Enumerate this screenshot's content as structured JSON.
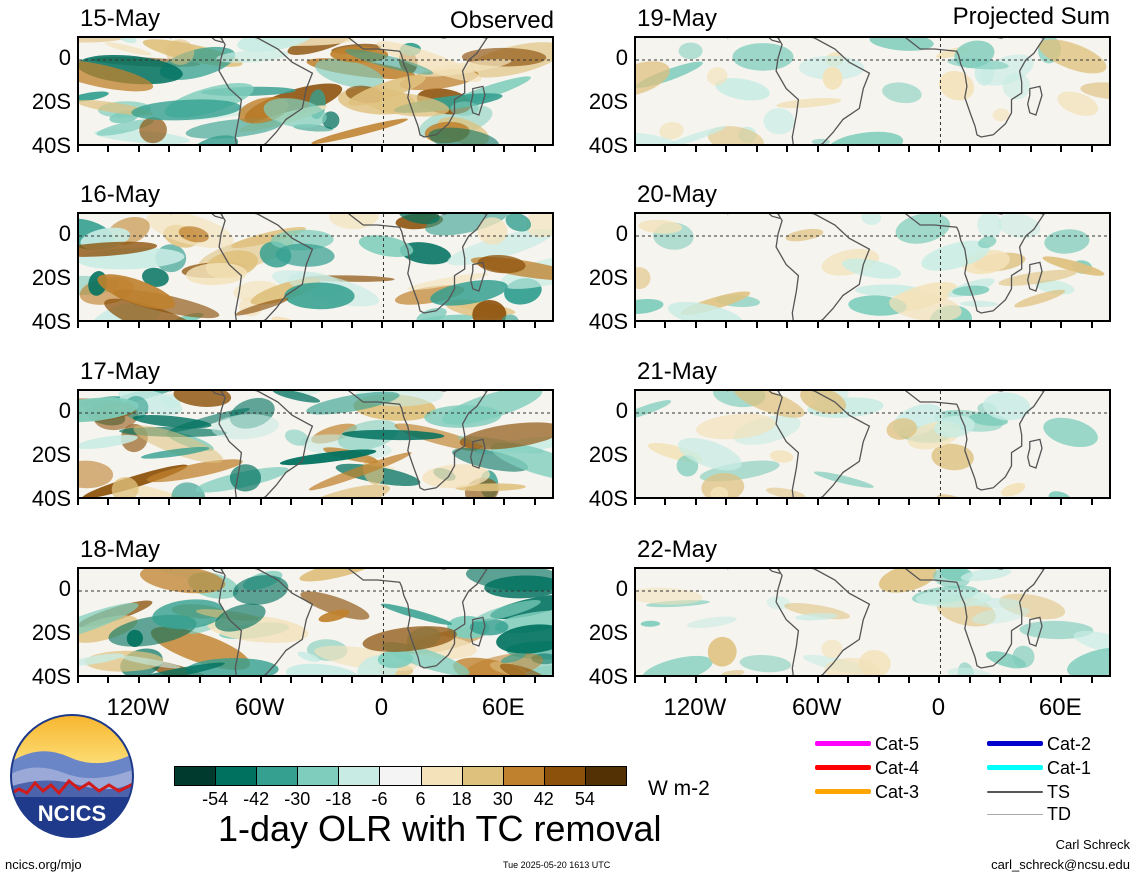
{
  "columns": {
    "observed": "Observed",
    "projected": "Projected Sum"
  },
  "panels_left": [
    {
      "date": "15-May"
    },
    {
      "date": "16-May"
    },
    {
      "date": "17-May"
    },
    {
      "date": "18-May"
    }
  ],
  "panels_right": [
    {
      "date": "19-May"
    },
    {
      "date": "20-May"
    },
    {
      "date": "21-May"
    },
    {
      "date": "22-May"
    }
  ],
  "map_extent": {
    "lon_min": -150,
    "lon_max": 85,
    "lat_min": -40,
    "lat_max": 10
  },
  "y_ticks": [
    "0",
    "20S",
    "40S"
  ],
  "x_ticks": [
    "120W",
    "60W",
    "0",
    "60E"
  ],
  "colorbar": {
    "labels": [
      "-54",
      "-42",
      "-30",
      "-18",
      "-6",
      "6",
      "18",
      "30",
      "42",
      "54"
    ],
    "colors": [
      "#00392d",
      "#00715f",
      "#35a090",
      "#7fcdbc",
      "#c8ece4",
      "#f4f4f4",
      "#f3e2ba",
      "#dfc17e",
      "#bf812d",
      "#8c510a",
      "#543005"
    ],
    "units": "W m-2"
  },
  "legend": [
    {
      "label": "Cat-5",
      "color": "#ff00ff"
    },
    {
      "label": "Cat-2",
      "color": "#0000cc"
    },
    {
      "label": "Cat-4",
      "color": "#ff0000"
    },
    {
      "label": "Cat-1",
      "color": "#00ffff"
    },
    {
      "label": "Cat-3",
      "color": "#ffa500"
    },
    {
      "label": "TS",
      "color": "#555555"
    },
    {
      "label": "TD",
      "color": "#aaaaaa"
    }
  ],
  "title": "1-day OLR with TC removal",
  "logo_text": "NCICS",
  "footer": {
    "left": "ncics.org/mjo",
    "center": "Tue 2025-05-20 1613 UTC",
    "author": "Carl Schreck",
    "email": "carl_schreck@ncsu.edu"
  }
}
